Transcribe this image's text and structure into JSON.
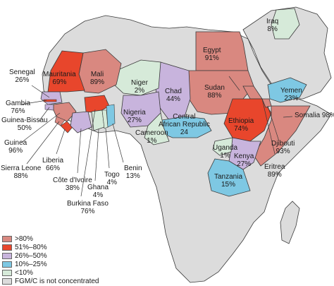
{
  "colors": {
    "gt80": "#d98880",
    "r51_80": "#e8462c",
    "r26_50": "#c8b4dd",
    "r10_25": "#7ec8e3",
    "lt10": "#d6ead9",
    "not_concentrated": "#dcdcdc",
    "border": "#3a3a3a"
  },
  "countries": {
    "egypt": {
      "name": "Egypt",
      "value": "91%"
    },
    "iraq": {
      "name": "Iraq",
      "value": "8%"
    },
    "mauritania": {
      "name": "Mauritania",
      "value": "69%"
    },
    "mali": {
      "name": "Mali",
      "value": "89%"
    },
    "niger": {
      "name": "Niger",
      "value": "2%"
    },
    "chad": {
      "name": "Chad",
      "value": "44%"
    },
    "sudan": {
      "name": "Sudan",
      "value": "88%"
    },
    "yemen": {
      "name": "Yemen",
      "value": "23%"
    },
    "senegal": {
      "name": "Senegal",
      "value": "26%"
    },
    "gambia": {
      "name": "Gambia",
      "value": "76%"
    },
    "guinea_bissau": {
      "name": "Guinea-Bissau",
      "value": "50%"
    },
    "guinea": {
      "name": "Guinea",
      "value": "96%"
    },
    "sierra_leone": {
      "name": "Sierra Leone",
      "value": "88%"
    },
    "liberia": {
      "name": "Liberia",
      "value": "66%"
    },
    "cote_divoire": {
      "name": "Côte d'Ivoire",
      "value": "38%"
    },
    "burkina_faso": {
      "name": "Burkina Faso",
      "value": "76%"
    },
    "ghana": {
      "name": "Ghana",
      "value": "4%"
    },
    "togo": {
      "name": "Togo",
      "value": "4%"
    },
    "benin": {
      "name": "Benin",
      "value": "13%"
    },
    "nigeria": {
      "name": "Nigeria",
      "value": "27%"
    },
    "cameroon": {
      "name": "Cameroon",
      "value": "1%"
    },
    "car": {
      "name": "Central African Republic",
      "line1": "Central",
      "line2": "African Republic",
      "value": "24"
    },
    "ethiopia": {
      "name": "Ethiopia",
      "value": "74%"
    },
    "somalia": {
      "name": "Somalia",
      "value": "98%"
    },
    "djibouti": {
      "name": "Djibouti",
      "value": "93%"
    },
    "eritrea": {
      "name": "Eritrea",
      "value": "89%"
    },
    "uganda": {
      "name": "Uganda",
      "value": "1%"
    },
    "kenya": {
      "name": "Kenya",
      "value": "27%"
    },
    "tanzania": {
      "name": "Tanzania",
      "value": "15%"
    }
  },
  "legend": [
    {
      "label": ">80%",
      "color_key": "gt80"
    },
    {
      "label": "51%–80%",
      "color_key": "r51_80"
    },
    {
      "label": "26%–50%",
      "color_key": "r26_50"
    },
    {
      "label": "10%–25%",
      "color_key": "r10_25"
    },
    {
      "label": "<10%",
      "color_key": "lt10"
    },
    {
      "label": "FGM/C is not concentrated",
      "color_key": "not_concentrated"
    }
  ]
}
